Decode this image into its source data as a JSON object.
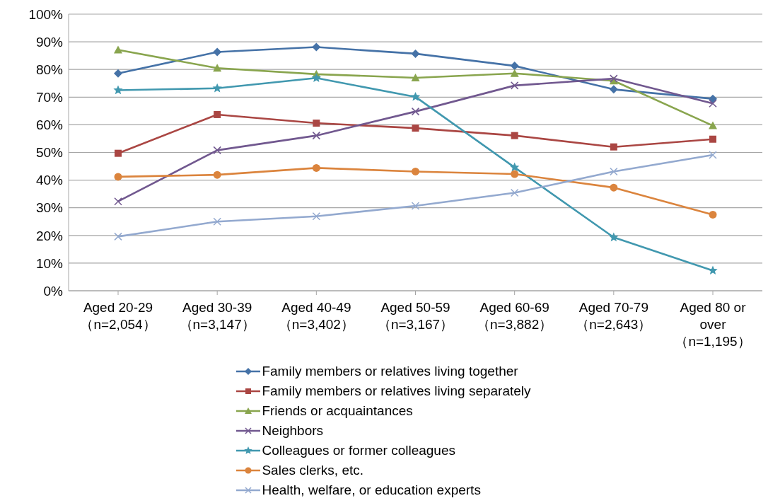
{
  "chart_data": {
    "type": "line",
    "categories": [
      "Aged 20-29\n（n=2,054）",
      "Aged 30-39\n（n=3,147）",
      "Aged 40-49\n（n=3,402）",
      "Aged 50-59\n（n=3,167）",
      "Aged 60-69\n（n=3,882）",
      "Aged 70-79\n（n=2,643）",
      "Aged 80 or\nover\n（n=1,195）"
    ],
    "series": [
      {
        "name": "Family members or relatives living together",
        "color": "#4572a7",
        "marker": "diamond",
        "values": [
          78.6,
          86.3,
          88.1,
          85.7,
          81.3,
          72.8,
          69.4
        ]
      },
      {
        "name": "Family members or relatives living separately",
        "color": "#aa4643",
        "marker": "square",
        "values": [
          49.7,
          63.7,
          60.6,
          58.8,
          56.1,
          52.0,
          54.8
        ]
      },
      {
        "name": "Friends or acquaintances",
        "color": "#89a54e",
        "marker": "triangle",
        "values": [
          87.1,
          80.5,
          78.3,
          77.0,
          78.6,
          75.9,
          59.7
        ]
      },
      {
        "name": "Neighbors",
        "color": "#71588f",
        "marker": "cross",
        "values": [
          32.3,
          50.8,
          56.1,
          64.8,
          74.2,
          76.7,
          67.7
        ]
      },
      {
        "name": "Colleagues or former colleagues",
        "color": "#4198af",
        "marker": "star",
        "values": [
          72.5,
          73.2,
          76.9,
          70.1,
          44.6,
          19.3,
          7.3
        ]
      },
      {
        "name": "Sales clerks, etc.",
        "color": "#db843d",
        "marker": "circle",
        "values": [
          41.2,
          41.9,
          44.4,
          43.1,
          42.2,
          37.3,
          27.5
        ]
      },
      {
        "name": "Health, welfare, or education experts",
        "color": "#93a9cf",
        "marker": "cross",
        "values": [
          19.6,
          25.0,
          26.9,
          30.7,
          35.4,
          43.1,
          49.1
        ]
      }
    ],
    "ylim": [
      0,
      100
    ],
    "yticks": [
      {
        "value": 0,
        "label": "0%"
      },
      {
        "value": 10,
        "label": "10%"
      },
      {
        "value": 20,
        "label": "20%"
      },
      {
        "value": 30,
        "label": "30%"
      },
      {
        "value": 40,
        "label": "40%"
      },
      {
        "value": 50,
        "label": "50%"
      },
      {
        "value": 60,
        "label": "60%"
      },
      {
        "value": 70,
        "label": "70%"
      },
      {
        "value": 80,
        "label": "80%"
      },
      {
        "value": 90,
        "label": "90%"
      },
      {
        "value": 100,
        "label": "100%"
      }
    ],
    "grid": "y",
    "legend": "bottom"
  }
}
